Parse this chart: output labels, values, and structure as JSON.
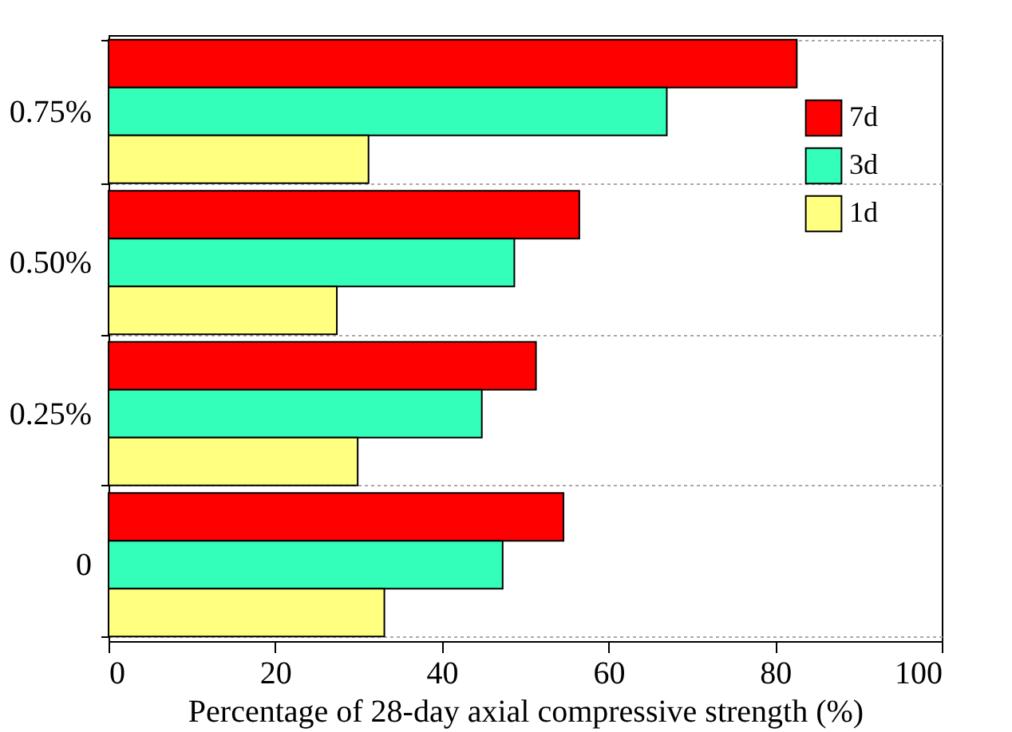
{
  "chart_data": {
    "type": "bar",
    "orientation": "horizontal",
    "xlabel": "Percentage of 28-day axial compressive strength (%)",
    "categories": [
      "0.75%",
      "0.50%",
      "0.25%",
      "0"
    ],
    "series": [
      {
        "name": "7d",
        "color": "#ff0000",
        "values": [
          82.6,
          56.5,
          51.3,
          54.6
        ]
      },
      {
        "name": "3d",
        "color": "#33ffbb",
        "values": [
          67.0,
          48.7,
          44.8,
          47.3
        ]
      },
      {
        "name": "1d",
        "color": "#ffff80",
        "values": [
          31.2,
          27.4,
          29.9,
          33.1
        ]
      }
    ],
    "xlim": [
      0,
      100
    ],
    "xticks": [
      0,
      20,
      40,
      60,
      80,
      100
    ],
    "grid": "y",
    "legend": "top right"
  }
}
